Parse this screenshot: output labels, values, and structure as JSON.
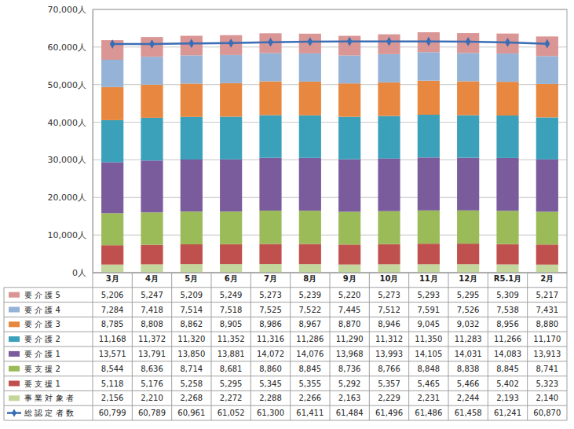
{
  "chart_data": {
    "type": "bar",
    "stacked": true,
    "grid": true,
    "legend": "bottom",
    "categories": [
      "3月",
      "4月",
      "5月",
      "6月",
      "7月",
      "8月",
      "9月",
      "10月",
      "11月",
      "12月",
      "R5.1月",
      "2月"
    ],
    "ylim": [
      0,
      70000
    ],
    "yticks": [
      {
        "value": 0,
        "label": "0人"
      },
      {
        "value": 10000,
        "label": "10,000人"
      },
      {
        "value": 20000,
        "label": "20,000人"
      },
      {
        "value": 30000,
        "label": "30,000人"
      },
      {
        "value": 40000,
        "label": "40,000人"
      },
      {
        "value": 50000,
        "label": "50,000人"
      },
      {
        "value": 60000,
        "label": "60,000人"
      },
      {
        "value": 70000,
        "label": "70,000人"
      }
    ],
    "series": [
      {
        "name": "事 業 対 象 者",
        "color": "#c3d69b",
        "values": [
          2156,
          2210,
          2268,
          2272,
          2288,
          2266,
          2163,
          2229,
          2231,
          2244,
          2193,
          2140
        ],
        "value_labels": [
          "2,156",
          "2,210",
          "2,268",
          "2,272",
          "2,288",
          "2,266",
          "2,163",
          "2,229",
          "2,231",
          "2,244",
          "2,193",
          "2,140"
        ]
      },
      {
        "name": "要 支 援 1",
        "color": "#c0504d",
        "values": [
          5118,
          5176,
          5258,
          5295,
          5345,
          5355,
          5292,
          5357,
          5465,
          5466,
          5402,
          5323
        ],
        "value_labels": [
          "5,118",
          "5,176",
          "5,258",
          "5,295",
          "5,345",
          "5,355",
          "5,292",
          "5,357",
          "5,465",
          "5,466",
          "5,402",
          "5,323"
        ]
      },
      {
        "name": "要 支 援 2",
        "color": "#9bbb59",
        "values": [
          8544,
          8636,
          8714,
          8681,
          8860,
          8845,
          8736,
          8766,
          8848,
          8838,
          8845,
          8741
        ],
        "value_labels": [
          "8,544",
          "8,636",
          "8,714",
          "8,681",
          "8,860",
          "8,845",
          "8,736",
          "8,766",
          "8,848",
          "8,838",
          "8,845",
          "8,741"
        ]
      },
      {
        "name": "要 介 護 1",
        "color": "#7a5c9c",
        "values": [
          13571,
          13791,
          13850,
          13881,
          14072,
          14076,
          13968,
          13993,
          14105,
          14031,
          14083,
          13913
        ],
        "value_labels": [
          "13,571",
          "13,791",
          "13,850",
          "13,881",
          "14,072",
          "14,076",
          "13,968",
          "13,993",
          "14,105",
          "14,031",
          "14,083",
          "13,913"
        ]
      },
      {
        "name": "要 介 護 2",
        "color": "#3ba1bb",
        "values": [
          11168,
          11372,
          11320,
          11352,
          11316,
          11286,
          11290,
          11312,
          11350,
          11283,
          11266,
          11170
        ],
        "value_labels": [
          "11,168",
          "11,372",
          "11,320",
          "11,352",
          "11,316",
          "11,286",
          "11,290",
          "11,312",
          "11,350",
          "11,283",
          "11,266",
          "11,170"
        ]
      },
      {
        "name": "要 介 護 3",
        "color": "#e8873f",
        "values": [
          8785,
          8808,
          8862,
          8905,
          8986,
          8967,
          8870,
          8946,
          9045,
          9032,
          8956,
          8880
        ],
        "value_labels": [
          "8,785",
          "8,808",
          "8,862",
          "8,905",
          "8,986",
          "8,967",
          "8,870",
          "8,946",
          "9,045",
          "9,032",
          "8,956",
          "8,880"
        ]
      },
      {
        "name": "要 介 護 4",
        "color": "#95b3d7",
        "values": [
          7284,
          7418,
          7514,
          7518,
          7525,
          7522,
          7445,
          7512,
          7591,
          7526,
          7538,
          7431
        ],
        "value_labels": [
          "7,284",
          "7,418",
          "7,514",
          "7,518",
          "7,525",
          "7,522",
          "7,445",
          "7,512",
          "7,591",
          "7,526",
          "7,538",
          "7,431"
        ]
      },
      {
        "name": "要 介 護 5",
        "color": "#da9694",
        "values": [
          5206,
          5247,
          5209,
          5249,
          5273,
          5239,
          5220,
          5273,
          5293,
          5295,
          5309,
          5217
        ],
        "value_labels": [
          "5,206",
          "5,247",
          "5,209",
          "5,249",
          "5,273",
          "5,239",
          "5,220",
          "5,273",
          "5,293",
          "5,295",
          "5,309",
          "5,217"
        ]
      },
      {
        "name": "総 認 定 者 数",
        "color": "#3a6db5",
        "type": "line",
        "marker": "diamond",
        "values": [
          60799,
          60789,
          60961,
          61052,
          61300,
          61411,
          61484,
          61496,
          61486,
          61458,
          61241,
          60870
        ],
        "value_labels": [
          "60,799",
          "60,789",
          "60,961",
          "61,052",
          "61,300",
          "61,411",
          "61,484",
          "61,496",
          "61,486",
          "61,458",
          "61,241",
          "60,870"
        ]
      }
    ]
  }
}
